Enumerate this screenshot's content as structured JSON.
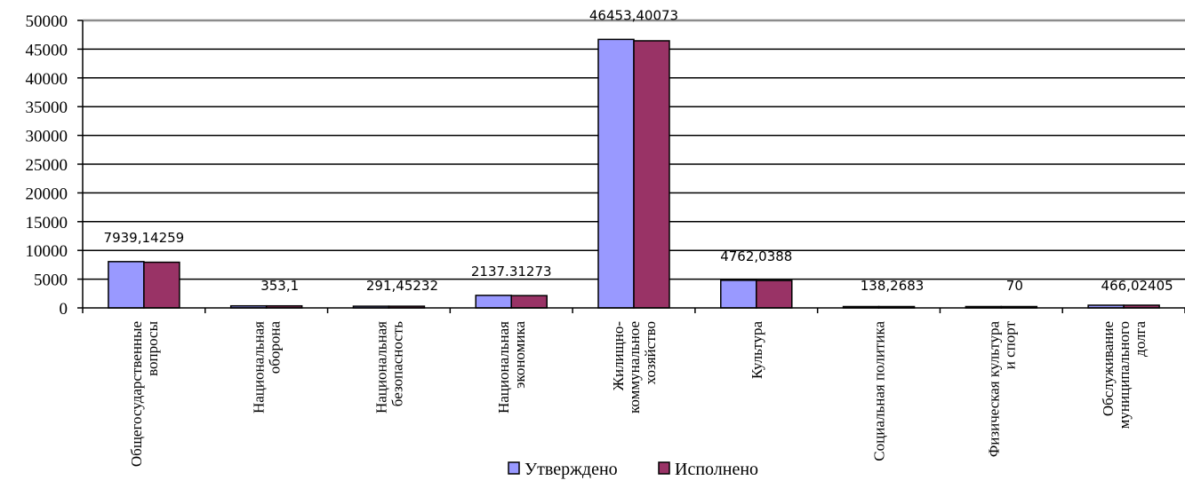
{
  "chart_data": {
    "type": "bar",
    "categories": [
      [
        "Общегосударственные",
        "вопросы"
      ],
      [
        "Национальная",
        "оборона"
      ],
      [
        "Национальная",
        "безопасность"
      ],
      [
        "Национальная",
        "экономика"
      ],
      [
        "Жилищно-",
        "коммунальное",
        "хозяйство"
      ],
      [
        "Культура"
      ],
      [
        "Социальная политика"
      ],
      [
        "Физическая культура",
        "и спорт"
      ],
      [
        "Обслуживание",
        "муниципального",
        "долга"
      ]
    ],
    "series": [
      {
        "name": "Утверждено",
        "color": "#9999ff",
        "values": [
          8050,
          353.1,
          291.45,
          2180,
          46700,
          4800,
          138.27,
          70,
          466.02
        ]
      },
      {
        "name": "Исполнено",
        "color": "#993366",
        "values": [
          7939.14259,
          353.1,
          291.45232,
          2137.31273,
          46453.40073,
          4762.0388,
          138.2683,
          70,
          466.02405
        ]
      }
    ],
    "data_labels": [
      "7939,14259",
      "353,1",
      "291,45232",
      "2137.31273",
      "46453,40073",
      "4762,0388",
      "138,2683",
      "70",
      "466,02405"
    ],
    "y_ticks": [
      "0",
      "5000",
      "10000",
      "15000",
      "20000",
      "25000",
      "30000",
      "35000",
      "40000",
      "45000",
      "50000"
    ],
    "ylim": [
      0,
      50000
    ],
    "grid": true,
    "legend_position": "bottom"
  }
}
